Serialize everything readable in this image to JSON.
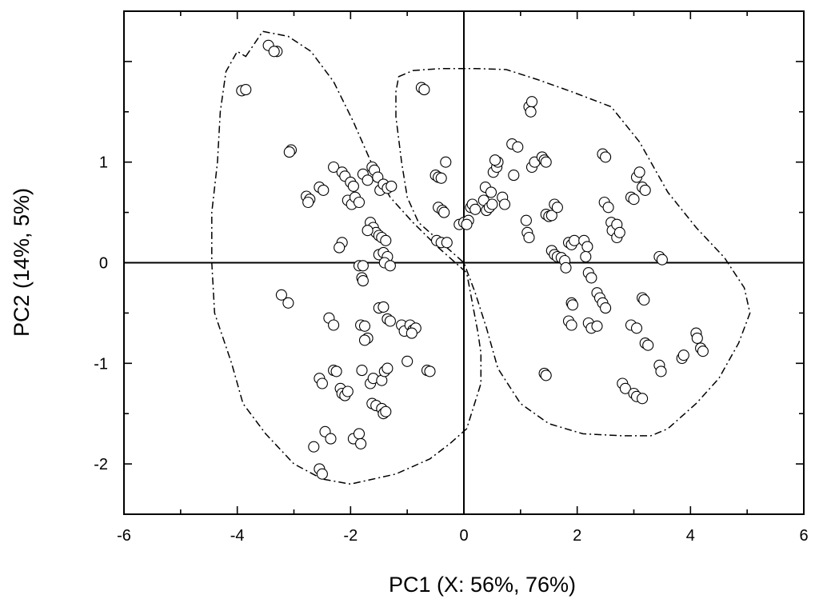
{
  "chart_data": {
    "type": "scatter",
    "title": "",
    "xlabel": "PC1 (X: 56%, 76%)",
    "ylabel": "PC2 (14%, 5%)",
    "xlim": [
      -6,
      6
    ],
    "ylim": [
      -2.5,
      2.5
    ],
    "x_ticks": [
      -6,
      -4,
      -2,
      0,
      2,
      4,
      6
    ],
    "y_ticks": [
      -2,
      -1,
      0,
      1
    ],
    "x_tick_labels": [
      "-6",
      "-4",
      "-2",
      "0",
      "2",
      "4",
      "6"
    ],
    "y_tick_labels": [
      "-2",
      "-1",
      "0",
      "1"
    ],
    "grid": false,
    "zero_lines": true,
    "marker": "open-circle",
    "points": [
      [
        -3.45,
        2.16
      ],
      [
        -3.3,
        2.1
      ],
      [
        -3.35,
        2.1
      ],
      [
        -3.92,
        1.71
      ],
      [
        -3.85,
        1.72
      ],
      [
        -3.05,
        1.12
      ],
      [
        -3.08,
        1.1
      ],
      [
        -2.78,
        0.66
      ],
      [
        -2.72,
        0.63
      ],
      [
        -2.75,
        0.6
      ],
      [
        -2.55,
        0.75
      ],
      [
        -2.48,
        0.72
      ],
      [
        -2.3,
        0.95
      ],
      [
        -2.15,
        0.9
      ],
      [
        -2.1,
        0.86
      ],
      [
        -2.0,
        0.8
      ],
      [
        -1.95,
        0.76
      ],
      [
        -2.05,
        0.62
      ],
      [
        -1.98,
        0.58
      ],
      [
        -1.92,
        0.65
      ],
      [
        -1.85,
        0.6
      ],
      [
        -1.78,
        0.88
      ],
      [
        -1.7,
        0.82
      ],
      [
        -1.62,
        0.95
      ],
      [
        -1.58,
        0.92
      ],
      [
        -1.52,
        0.85
      ],
      [
        -1.48,
        0.72
      ],
      [
        -1.42,
        0.78
      ],
      [
        -1.35,
        0.74
      ],
      [
        -1.28,
        0.76
      ],
      [
        -1.65,
        0.4
      ],
      [
        -1.6,
        0.35
      ],
      [
        -1.55,
        0.3
      ],
      [
        -1.7,
        0.32
      ],
      [
        -1.5,
        0.27
      ],
      [
        -1.45,
        0.25
      ],
      [
        -1.38,
        0.22
      ],
      [
        -2.15,
        0.2
      ],
      [
        -2.2,
        0.15
      ],
      [
        -1.85,
        -0.03
      ],
      [
        -1.78,
        -0.03
      ],
      [
        -1.8,
        -0.15
      ],
      [
        -1.78,
        -0.18
      ],
      [
        -1.5,
        0.08
      ],
      [
        -1.42,
        0.1
      ],
      [
        -1.35,
        0.06
      ],
      [
        -1.4,
        0.0
      ],
      [
        -1.3,
        -0.03
      ],
      [
        -3.22,
        -0.32
      ],
      [
        -3.1,
        -0.4
      ],
      [
        -2.38,
        -0.55
      ],
      [
        -2.3,
        -0.62
      ],
      [
        -1.82,
        -0.62
      ],
      [
        -1.75,
        -0.63
      ],
      [
        -1.5,
        -0.45
      ],
      [
        -1.42,
        -0.44
      ],
      [
        -1.35,
        -0.56
      ],
      [
        -1.3,
        -0.58
      ],
      [
        -1.7,
        -0.75
      ],
      [
        -1.75,
        -0.77
      ],
      [
        -1.1,
        -0.62
      ],
      [
        -1.05,
        -0.68
      ],
      [
        -0.95,
        -0.62
      ],
      [
        -0.9,
        -0.67
      ],
      [
        -0.85,
        -0.65
      ],
      [
        -0.92,
        -0.7
      ],
      [
        -2.55,
        -1.15
      ],
      [
        -2.5,
        -1.2
      ],
      [
        -2.3,
        -1.07
      ],
      [
        -2.25,
        -1.08
      ],
      [
        -1.8,
        -1.07
      ],
      [
        -1.65,
        -1.2
      ],
      [
        -1.6,
        -1.15
      ],
      [
        -1.45,
        -1.17
      ],
      [
        -1.4,
        -1.08
      ],
      [
        -1.35,
        -1.05
      ],
      [
        -1.0,
        -0.98
      ],
      [
        -0.65,
        -1.07
      ],
      [
        -0.6,
        -1.08
      ],
      [
        -2.18,
        -1.25
      ],
      [
        -2.15,
        -1.3
      ],
      [
        -2.1,
        -1.32
      ],
      [
        -2.05,
        -1.28
      ],
      [
        -1.62,
        -1.4
      ],
      [
        -1.55,
        -1.42
      ],
      [
        -1.45,
        -1.45
      ],
      [
        -1.42,
        -1.5
      ],
      [
        -1.38,
        -1.48
      ],
      [
        -2.45,
        -1.68
      ],
      [
        -2.35,
        -1.75
      ],
      [
        -2.65,
        -1.83
      ],
      [
        -1.95,
        -1.75
      ],
      [
        -1.85,
        -1.7
      ],
      [
        -1.82,
        -1.8
      ],
      [
        -2.55,
        -2.05
      ],
      [
        -2.5,
        -2.1
      ],
      [
        -0.75,
        1.74
      ],
      [
        -0.7,
        1.72
      ],
      [
        -0.32,
        1.0
      ],
      [
        -0.5,
        0.87
      ],
      [
        -0.45,
        0.85
      ],
      [
        -0.4,
        0.84
      ],
      [
        -0.45,
        0.55
      ],
      [
        -0.38,
        0.52
      ],
      [
        -0.35,
        0.5
      ],
      [
        -0.48,
        0.22
      ],
      [
        -0.4,
        0.2
      ],
      [
        -0.3,
        0.2
      ],
      [
        -0.08,
        0.38
      ],
      [
        0.0,
        0.4
      ],
      [
        0.08,
        0.42
      ],
      [
        0.12,
        0.55
      ],
      [
        0.15,
        0.58
      ],
      [
        0.2,
        0.53
      ],
      [
        0.05,
        0.38
      ],
      [
        0.35,
        0.62
      ],
      [
        0.4,
        0.52
      ],
      [
        0.45,
        0.55
      ],
      [
        0.5,
        0.58
      ],
      [
        0.38,
        0.75
      ],
      [
        0.48,
        0.7
      ],
      [
        0.52,
        0.9
      ],
      [
        0.58,
        0.95
      ],
      [
        0.6,
        1.0
      ],
      [
        0.55,
        1.02
      ],
      [
        0.68,
        0.65
      ],
      [
        0.72,
        0.58
      ],
      [
        0.85,
        1.18
      ],
      [
        0.95,
        1.15
      ],
      [
        0.88,
        0.87
      ],
      [
        1.1,
        0.42
      ],
      [
        1.12,
        0.3
      ],
      [
        1.15,
        0.25
      ],
      [
        1.15,
        1.55
      ],
      [
        1.2,
        1.6
      ],
      [
        1.18,
        1.5
      ],
      [
        1.2,
        0.95
      ],
      [
        1.25,
        1.0
      ],
      [
        1.38,
        1.05
      ],
      [
        1.42,
        1.02
      ],
      [
        1.45,
        1.0
      ],
      [
        1.45,
        0.48
      ],
      [
        1.5,
        0.46
      ],
      [
        1.55,
        0.47
      ],
      [
        1.6,
        0.58
      ],
      [
        1.65,
        0.55
      ],
      [
        1.55,
        0.12
      ],
      [
        1.6,
        0.08
      ],
      [
        1.65,
        0.06
      ],
      [
        1.72,
        0.05
      ],
      [
        1.78,
        0.02
      ],
      [
        1.8,
        -0.05
      ],
      [
        1.85,
        0.2
      ],
      [
        1.9,
        0.18
      ],
      [
        1.95,
        0.22
      ],
      [
        1.9,
        -0.4
      ],
      [
        1.92,
        -0.42
      ],
      [
        2.12,
        0.22
      ],
      [
        2.18,
        0.16
      ],
      [
        2.15,
        0.06
      ],
      [
        2.2,
        -0.1
      ],
      [
        2.25,
        -0.15
      ],
      [
        2.35,
        -0.3
      ],
      [
        2.4,
        -0.35
      ],
      [
        2.45,
        -0.4
      ],
      [
        2.5,
        -0.45
      ],
      [
        1.85,
        -0.58
      ],
      [
        1.9,
        -0.62
      ],
      [
        2.2,
        -0.6
      ],
      [
        2.25,
        -0.65
      ],
      [
        2.35,
        -0.63
      ],
      [
        2.45,
        1.08
      ],
      [
        2.5,
        1.05
      ],
      [
        2.48,
        0.6
      ],
      [
        2.55,
        0.55
      ],
      [
        2.6,
        0.4
      ],
      [
        2.62,
        0.32
      ],
      [
        2.7,
        0.38
      ],
      [
        2.7,
        0.25
      ],
      [
        2.75,
        0.3
      ],
      [
        2.95,
        0.65
      ],
      [
        3.0,
        0.63
      ],
      [
        3.05,
        0.85
      ],
      [
        3.1,
        0.9
      ],
      [
        3.15,
        0.75
      ],
      [
        3.2,
        0.72
      ],
      [
        2.95,
        -0.62
      ],
      [
        3.05,
        -0.65
      ],
      [
        3.15,
        -0.35
      ],
      [
        3.18,
        -0.37
      ],
      [
        3.2,
        -0.8
      ],
      [
        3.25,
        -0.82
      ],
      [
        3.45,
        0.06
      ],
      [
        3.5,
        0.03
      ],
      [
        2.8,
        -1.2
      ],
      [
        2.85,
        -1.25
      ],
      [
        3.0,
        -1.3
      ],
      [
        3.05,
        -1.33
      ],
      [
        3.15,
        -1.35
      ],
      [
        3.45,
        -1.02
      ],
      [
        3.48,
        -1.08
      ],
      [
        3.85,
        -0.95
      ],
      [
        3.88,
        -0.92
      ],
      [
        4.1,
        -0.7
      ],
      [
        4.12,
        -0.75
      ],
      [
        4.18,
        -0.85
      ],
      [
        4.22,
        -0.88
      ],
      [
        1.42,
        -1.1
      ],
      [
        1.45,
        -1.12
      ]
    ],
    "boundaries": [
      {
        "style": "dash-dot",
        "points": [
          [
            -3.85,
            2.05
          ],
          [
            -3.55,
            2.3
          ],
          [
            -3.1,
            2.25
          ],
          [
            -2.7,
            2.1
          ],
          [
            -2.3,
            1.8
          ],
          [
            -1.95,
            1.4
          ],
          [
            -1.6,
            0.95
          ],
          [
            -1.3,
            0.65
          ],
          [
            -0.9,
            0.4
          ],
          [
            -0.45,
            0.15
          ],
          [
            -0.15,
            0.0
          ],
          [
            0.05,
            -0.1
          ],
          [
            0.15,
            -0.4
          ],
          [
            0.25,
            -0.7
          ],
          [
            0.3,
            -0.9
          ],
          [
            0.3,
            -1.2
          ],
          [
            0.05,
            -1.65
          ],
          [
            -0.25,
            -1.8
          ],
          [
            -0.6,
            -1.95
          ],
          [
            -1.2,
            -2.1
          ],
          [
            -1.6,
            -2.15
          ],
          [
            -2.0,
            -2.2
          ],
          [
            -2.5,
            -2.15
          ],
          [
            -3.0,
            -2.0
          ],
          [
            -3.5,
            -1.7
          ],
          [
            -3.9,
            -1.4
          ],
          [
            -4.1,
            -1.0
          ],
          [
            -4.4,
            -0.5
          ],
          [
            -4.45,
            0.0
          ],
          [
            -4.45,
            0.5
          ],
          [
            -4.35,
            1.0
          ],
          [
            -4.3,
            1.5
          ],
          [
            -4.2,
            1.9
          ],
          [
            -4.0,
            2.1
          ],
          [
            -3.85,
            2.05
          ]
        ]
      },
      {
        "style": "dash-dot",
        "points": [
          [
            -1.15,
            1.85
          ],
          [
            -0.9,
            1.91
          ],
          [
            -0.4,
            1.93
          ],
          [
            0.2,
            1.93
          ],
          [
            0.75,
            1.92
          ],
          [
            1.3,
            1.82
          ],
          [
            1.9,
            1.7
          ],
          [
            2.6,
            1.55
          ],
          [
            3.1,
            1.2
          ],
          [
            3.6,
            0.7
          ],
          [
            4.1,
            0.35
          ],
          [
            4.6,
            0.05
          ],
          [
            4.95,
            -0.25
          ],
          [
            5.05,
            -0.5
          ],
          [
            4.85,
            -0.8
          ],
          [
            4.5,
            -1.15
          ],
          [
            4.1,
            -1.4
          ],
          [
            3.6,
            -1.65
          ],
          [
            3.3,
            -1.72
          ],
          [
            2.8,
            -1.72
          ],
          [
            2.1,
            -1.7
          ],
          [
            1.5,
            -1.6
          ],
          [
            1.0,
            -1.4
          ],
          [
            0.6,
            -1.05
          ],
          [
            0.4,
            -0.65
          ],
          [
            0.2,
            -0.3
          ],
          [
            0.0,
            0.0
          ],
          [
            -0.4,
            0.2
          ],
          [
            -0.8,
            0.4
          ],
          [
            -1.0,
            0.65
          ],
          [
            -1.1,
            1.0
          ],
          [
            -1.2,
            1.45
          ],
          [
            -1.2,
            1.7
          ],
          [
            -1.15,
            1.85
          ]
        ]
      }
    ]
  }
}
